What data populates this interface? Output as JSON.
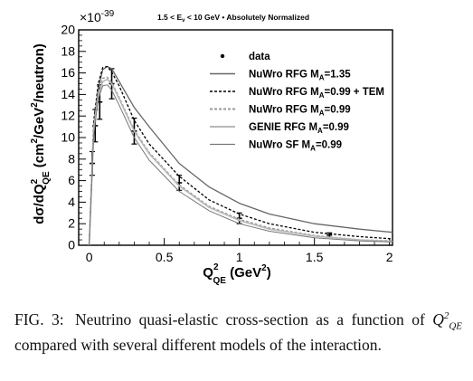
{
  "chart_data": {
    "type": "line",
    "title": "1.5 < Eν < 10 GeV • Absolutely Normalized",
    "title_parts": {
      "pre": "1.5 < E",
      "sub": "ν",
      "post": " < 10 GeV • Absolutely Normalized"
    },
    "xlabel": {
      "main": "Q",
      "sup": "2",
      "sub": "QE",
      "unit": " (GeV",
      "unit_sup": "2",
      "unit_end": ")"
    },
    "ylabel": "dσ/dQ²QE (cm²/GeV²/neutron)",
    "ylabel_parts": {
      "a": "dσ/dQ",
      "a_sup": "2",
      "a_sub": "QE",
      "b": " (cm",
      "b_sup": "2",
      "c": "/GeV",
      "c_sup": "2",
      "d": "/neutron)"
    },
    "y_multiplier": {
      "base": "×10",
      "exp": "-39"
    },
    "xlim": [
      -0.07,
      2.02
    ],
    "ylim": [
      0,
      20
    ],
    "xticks": [
      0,
      0.5,
      1,
      1.5,
      2
    ],
    "xtick_labels": [
      "0",
      "0.5",
      "1",
      "1.5",
      "2"
    ],
    "yticks": [
      0,
      2,
      4,
      6,
      8,
      10,
      12,
      14,
      16,
      18,
      20
    ],
    "ytick_labels": [
      "0",
      "2",
      "4",
      "6",
      "8",
      "10",
      "12",
      "14",
      "16",
      "18",
      "20"
    ],
    "legend_position": "top-right",
    "series": [
      {
        "name": "data",
        "kind": "points",
        "color": "#000000",
        "points": [
          {
            "x": 0.02,
            "y": 7.6,
            "err": 1.1
          },
          {
            "x": 0.04,
            "y": 11.1,
            "err": 1.5
          },
          {
            "x": 0.07,
            "y": 13.3,
            "err": 1.6
          },
          {
            "x": 0.15,
            "y": 15.0,
            "err": 1.4
          },
          {
            "x": 0.3,
            "y": 10.6,
            "err": 1.2
          },
          {
            "x": 0.6,
            "y": 5.8,
            "err": 0.7
          },
          {
            "x": 1.0,
            "y": 2.5,
            "err": 0.5
          },
          {
            "x": 1.6,
            "y": 0.95,
            "err": 0.2
          }
        ]
      },
      {
        "name": "NuWro RFG M_A=1.35",
        "label": {
          "pre": "NuWro RFG M",
          "sub": "A",
          "post": "=1.35"
        },
        "kind": "line",
        "color": "#666666",
        "dash": "",
        "width": 1.3,
        "x": [
          0.0,
          0.03,
          0.06,
          0.09,
          0.12,
          0.15,
          0.2,
          0.3,
          0.4,
          0.6,
          0.8,
          1.0,
          1.2,
          1.5,
          1.8,
          2.02
        ],
        "y": [
          0.0,
          11.0,
          14.5,
          16.3,
          16.6,
          16.4,
          15.2,
          12.8,
          11.0,
          7.6,
          5.4,
          3.9,
          2.9,
          2.0,
          1.5,
          1.2
        ]
      },
      {
        "name": "NuWro RFG M_A=0.99 + TEM",
        "label": {
          "pre": "NuWro RFG M",
          "sub": "A",
          "post": "=0.99 + TEM"
        },
        "kind": "line",
        "color": "#000000",
        "dash": "3,2",
        "width": 1.3,
        "x": [
          0.0,
          0.03,
          0.06,
          0.09,
          0.12,
          0.15,
          0.2,
          0.3,
          0.4,
          0.6,
          0.8,
          1.0,
          1.2,
          1.5,
          1.8,
          2.02
        ],
        "y": [
          0.0,
          11.5,
          15.0,
          16.5,
          16.6,
          16.1,
          14.8,
          11.6,
          9.4,
          6.4,
          4.2,
          2.9,
          2.0,
          1.2,
          0.8,
          0.6
        ]
      },
      {
        "name": "NuWro RFG M_A=0.99",
        "label": {
          "pre": "NuWro RFG M",
          "sub": "A",
          "post": "=0.99"
        },
        "kind": "line",
        "color": "#9a9a9a",
        "dash": "3,2",
        "width": 1.6,
        "x": [
          0.0,
          0.03,
          0.06,
          0.09,
          0.12,
          0.15,
          0.2,
          0.3,
          0.4,
          0.6,
          0.8,
          1.0,
          1.2,
          1.5,
          1.8,
          2.02
        ],
        "y": [
          0.0,
          10.9,
          14.2,
          15.5,
          15.6,
          15.1,
          13.7,
          10.7,
          8.6,
          5.6,
          3.6,
          2.4,
          1.6,
          0.9,
          0.5,
          0.4
        ]
      },
      {
        "name": "GENIE RFG M_A=0.99",
        "label": {
          "pre": "GENIE RFG M",
          "sub": "A",
          "post": "=0.99"
        },
        "kind": "line",
        "color": "#b8b8b8",
        "dash": "",
        "width": 1.6,
        "x": [
          0.0,
          0.03,
          0.06,
          0.09,
          0.12,
          0.15,
          0.2,
          0.3,
          0.4,
          0.6,
          0.8,
          1.0,
          1.2,
          1.5,
          1.8,
          2.02
        ],
        "y": [
          0.0,
          10.6,
          13.9,
          15.2,
          15.4,
          15.0,
          13.6,
          10.6,
          8.5,
          5.5,
          3.5,
          2.3,
          1.5,
          0.85,
          0.5,
          0.35
        ]
      },
      {
        "name": "NuWro SF M_A=0.99",
        "label": {
          "pre": "NuWro SF M",
          "sub": "A",
          "post": "=0.99"
        },
        "kind": "line",
        "color": "#777777",
        "dash": "",
        "width": 1.0,
        "x": [
          0.0,
          0.03,
          0.06,
          0.09,
          0.12,
          0.15,
          0.2,
          0.3,
          0.4,
          0.6,
          0.8,
          1.0,
          1.2,
          1.5,
          1.8,
          2.02
        ],
        "y": [
          0.0,
          10.2,
          13.6,
          14.8,
          14.9,
          14.4,
          13.0,
          10.0,
          7.9,
          5.0,
          3.2,
          2.0,
          1.3,
          0.7,
          0.4,
          0.3
        ]
      }
    ]
  },
  "caption": {
    "label": "FIG. 3:",
    "text_1": "Neutrino quasi-elastic cross-section as a function of",
    "q_base": "Q",
    "q_sup": "2",
    "q_sub": "QE",
    "text_2": "compared with several different models of the interaction."
  }
}
